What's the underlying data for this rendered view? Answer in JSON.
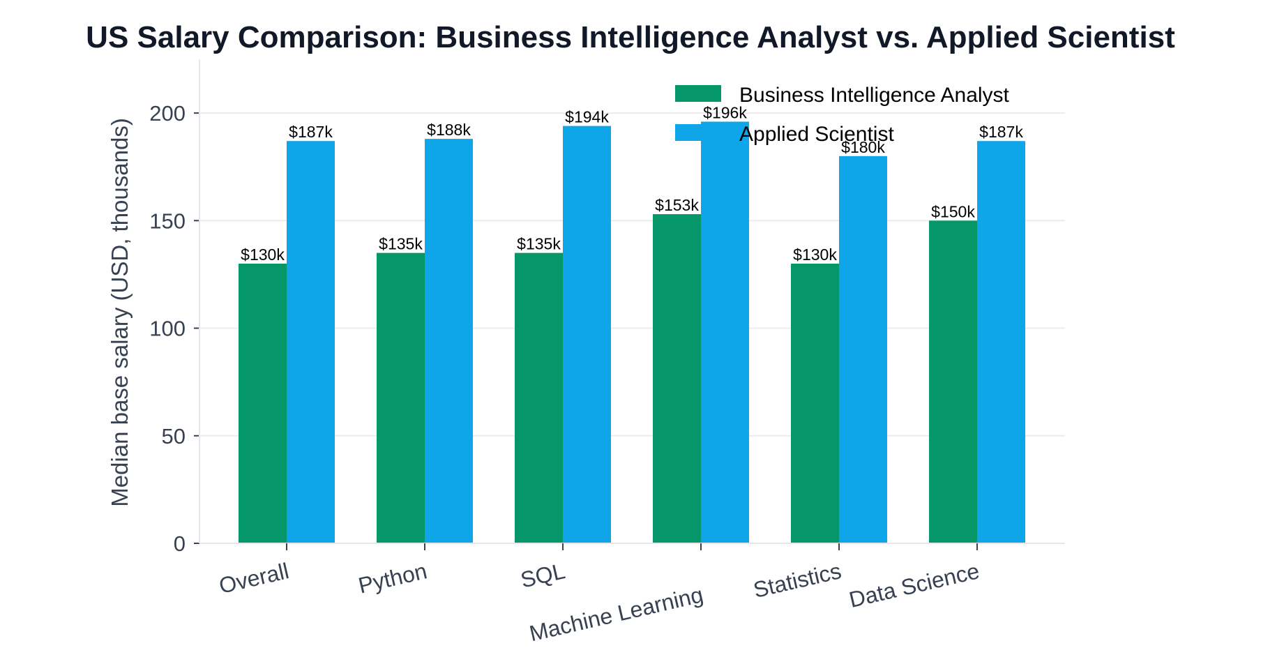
{
  "chart_data": {
    "type": "bar",
    "title": "US Salary Comparison: Business Intelligence Analyst vs. Applied Scientist",
    "xlabel": "",
    "ylabel": "Median base salary (USD, thousands)",
    "ylim": [
      0,
      225
    ],
    "yticks": [
      0,
      50,
      100,
      150,
      200
    ],
    "categories": [
      "Overall",
      "Python",
      "SQL",
      "Machine Learning",
      "Statistics",
      "Data Science"
    ],
    "series": [
      {
        "name": "Business Intelligence Analyst",
        "color": "#059669",
        "values": [
          130,
          135,
          135,
          153,
          130,
          150
        ],
        "labels": [
          "$130k",
          "$135k",
          "$135k",
          "$153k",
          "$130k",
          "$150k"
        ]
      },
      {
        "name": "Applied Scientist",
        "color": "#0ea5e9",
        "values": [
          187,
          188,
          194,
          196,
          180,
          187
        ],
        "labels": [
          "$187k",
          "$188k",
          "$194k",
          "$196k",
          "$180k",
          "$187k"
        ]
      }
    ],
    "grid": "horizontal",
    "legend_position": "top-right"
  }
}
